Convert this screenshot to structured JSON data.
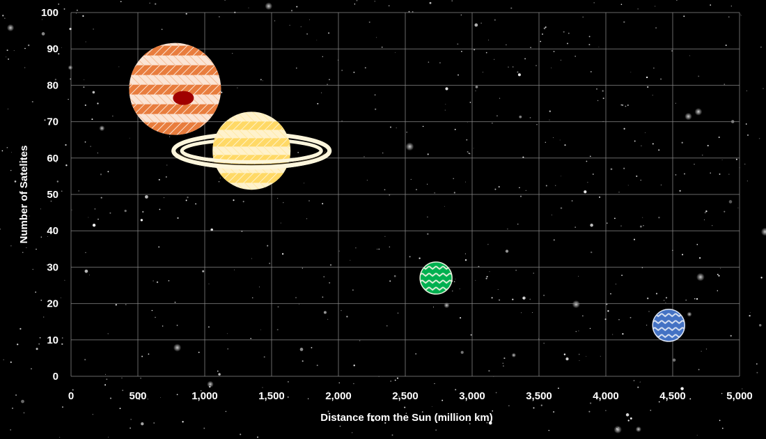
{
  "chart_data": {
    "type": "scatter",
    "xlabel": "Distance from the Sun (million km)",
    "ylabel": "Number of Satelites",
    "xlim": [
      0,
      5000
    ],
    "ylim": [
      0,
      100
    ],
    "x_ticks": [
      0,
      500,
      1000,
      1500,
      2000,
      2500,
      3000,
      3500,
      4000,
      4500,
      5000
    ],
    "x_tick_labels": [
      "0",
      "500",
      "1,000",
      "1,500",
      "2,000",
      "2,500",
      "3,000",
      "3,500",
      "4,000",
      "4,500",
      "5,000"
    ],
    "y_ticks": [
      0,
      10,
      20,
      30,
      40,
      50,
      60,
      70,
      80,
      90,
      100
    ],
    "y_tick_labels": [
      "0",
      "10",
      "20",
      "30",
      "40",
      "50",
      "60",
      "70",
      "80",
      "90",
      "100"
    ],
    "grid": true,
    "background": "starfield",
    "points": [
      {
        "x": 778,
        "y": 79,
        "marker": "jupiter-icon",
        "relative_size": 1.0,
        "colors": [
          "#e87d3e",
          "#fbe5d6",
          "#a00000"
        ]
      },
      {
        "x": 1350,
        "y": 62,
        "marker": "saturn-icon",
        "relative_size": 0.85,
        "colors": [
          "#ffd966",
          "#fff2cc",
          "#fdf6dc"
        ]
      },
      {
        "x": 2730,
        "y": 27,
        "marker": "uranus-icon",
        "relative_size": 0.36,
        "colors": [
          "#00b050",
          "#e2f0d9"
        ]
      },
      {
        "x": 4470,
        "y": 14,
        "marker": "neptune-icon",
        "relative_size": 0.36,
        "colors": [
          "#4472c4",
          "#dae3f3"
        ]
      }
    ]
  }
}
